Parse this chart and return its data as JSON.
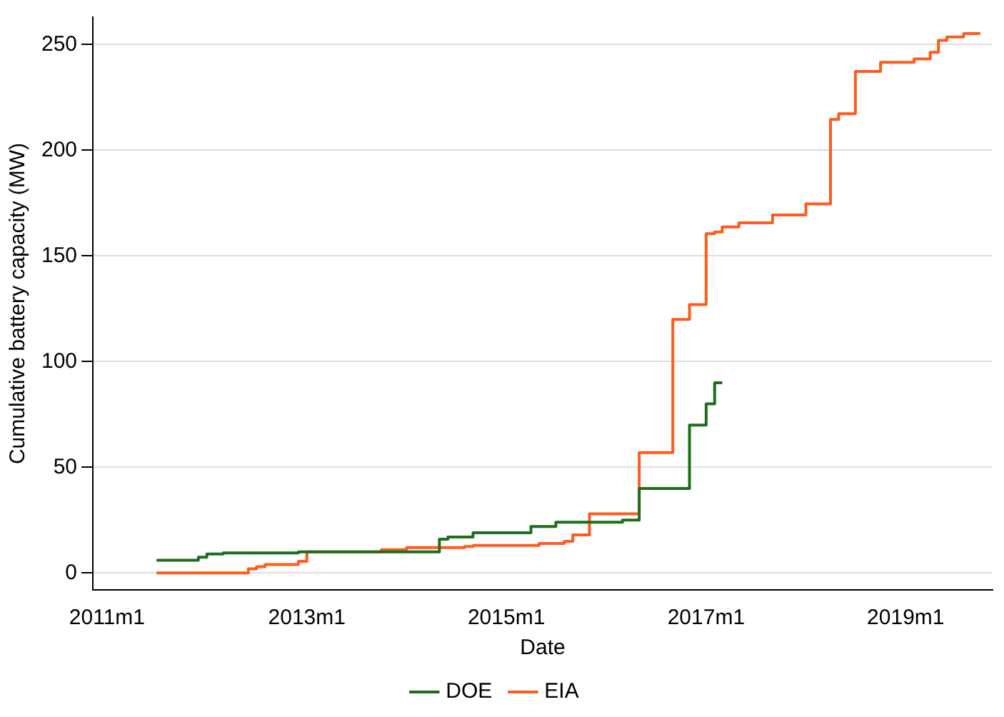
{
  "chart_data": {
    "type": "step",
    "xlabel": "Date",
    "ylabel": "Cumulative battery capacity (MW)",
    "xlim": [
      "2010-11-10",
      "2019-11-15"
    ],
    "xticks": [
      {
        "value": "2011-01",
        "label": "2011m1"
      },
      {
        "value": "2013-01",
        "label": "2013m1"
      },
      {
        "value": "2015-01",
        "label": "2015m1"
      },
      {
        "value": "2017-01",
        "label": "2017m1"
      },
      {
        "value": "2019-01",
        "label": "2019m1"
      }
    ],
    "ylim": [
      -8,
      263
    ],
    "yticks": [
      0,
      50,
      100,
      150,
      200,
      250
    ],
    "grid": "y",
    "legend": "bottom",
    "series": [
      {
        "name": "DOE",
        "color": "#1e6e1e",
        "x": [
          "2011-07",
          "2011-12",
          "2012-01",
          "2012-03",
          "2012-12",
          "2014-05",
          "2014-06",
          "2014-09",
          "2015-04",
          "2015-07",
          "2016-03",
          "2016-05",
          "2016-11",
          "2017-01",
          "2017-02",
          "2017-03"
        ],
        "values": [
          6,
          7.5,
          9,
          9.5,
          10,
          16,
          17,
          19,
          22,
          24,
          25,
          40,
          70,
          80,
          90,
          90
        ]
      },
      {
        "name": "EIA",
        "color": "#ff5b1e",
        "x": [
          "2011-07",
          "2012-06",
          "2012-07",
          "2012-08",
          "2012-12",
          "2013-01",
          "2013-10",
          "2014-01",
          "2014-08",
          "2014-09",
          "2015-05",
          "2015-08",
          "2015-09",
          "2015-11",
          "2016-05",
          "2016-09",
          "2016-11",
          "2017-01",
          "2017-02",
          "2017-03",
          "2017-05",
          "2017-09",
          "2018-01",
          "2018-04",
          "2018-05",
          "2018-07",
          "2018-10",
          "2019-02",
          "2019-04",
          "2019-05",
          "2019-06",
          "2019-08",
          "2019-10"
        ],
        "values": [
          0,
          2,
          3,
          4,
          5.5,
          10,
          11,
          12,
          12.5,
          13,
          14,
          15,
          18,
          28,
          57,
          120,
          127,
          160.5,
          161.4,
          163.7,
          165.7,
          169.4,
          174.6,
          214.6,
          217.3,
          237.3,
          241.6,
          243.2,
          246.4,
          252,
          253.6,
          255.2,
          255.2
        ]
      }
    ]
  }
}
